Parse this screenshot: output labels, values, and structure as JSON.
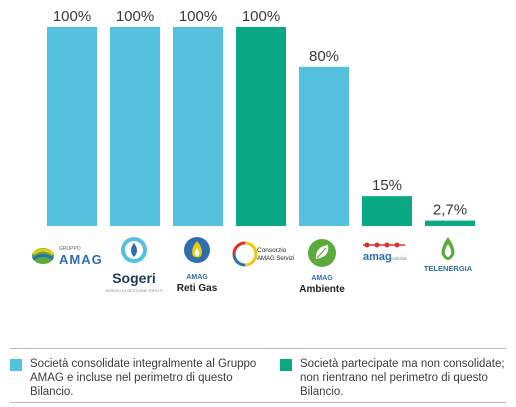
{
  "colors": {
    "consolidated": "#55c1de",
    "participated": "#0aa884",
    "amag_blue": "#2e6fb0",
    "amag_green": "#5aab3c",
    "amag_yellow": "#f2c80f",
    "sogeri_dark": "#1d3a5e",
    "red": "#e03030"
  },
  "chart_data": {
    "type": "bar",
    "categories": [
      "Gruppo AMAG",
      "Sogeri",
      "AMAG Reti Gas",
      "Consorzio AMAG Servizi",
      "AMAG Ambiente",
      "amag mobilità",
      "Telenergia"
    ],
    "values": [
      100,
      100,
      100,
      100,
      80,
      15,
      2.7
    ],
    "value_labels": [
      "100%",
      "100%",
      "100%",
      "100%",
      "80%",
      "15%",
      "2,7%"
    ],
    "series_group": [
      "consolidated",
      "consolidated",
      "consolidated",
      "participated",
      "consolidated",
      "participated",
      "participated"
    ],
    "ylim": [
      0,
      100
    ],
    "grid": false,
    "legend_placement": "bottom"
  },
  "logos": {
    "amag_group_top": "GRUPPO",
    "amag_group_main": "AMAG",
    "sogeri_main": "Sogeri",
    "sogeri_sub": "SERVIZI DI GESTIONE RIFIUTI",
    "retigas_top": "AMAG",
    "retigas_main": "Reti Gas",
    "consorzio_line1": "Consorzio",
    "consorzio_line2": "AMAG Servizi",
    "ambiente_top": "AMAG",
    "ambiente_main": "Ambiente",
    "mobilita_main": "amag",
    "mobilita_sub": "mobilità",
    "telenergia_main": "TELENERGIA"
  },
  "legend": [
    {
      "key": "consolidated",
      "text": "Società consolidate integralmente al Gruppo AMAG e incluse nel perimetro di questo Bilancio."
    },
    {
      "key": "participated",
      "text": "Società partecipate ma non consolidate; non rientrano nel perimetro di questo Bilancio."
    }
  ]
}
